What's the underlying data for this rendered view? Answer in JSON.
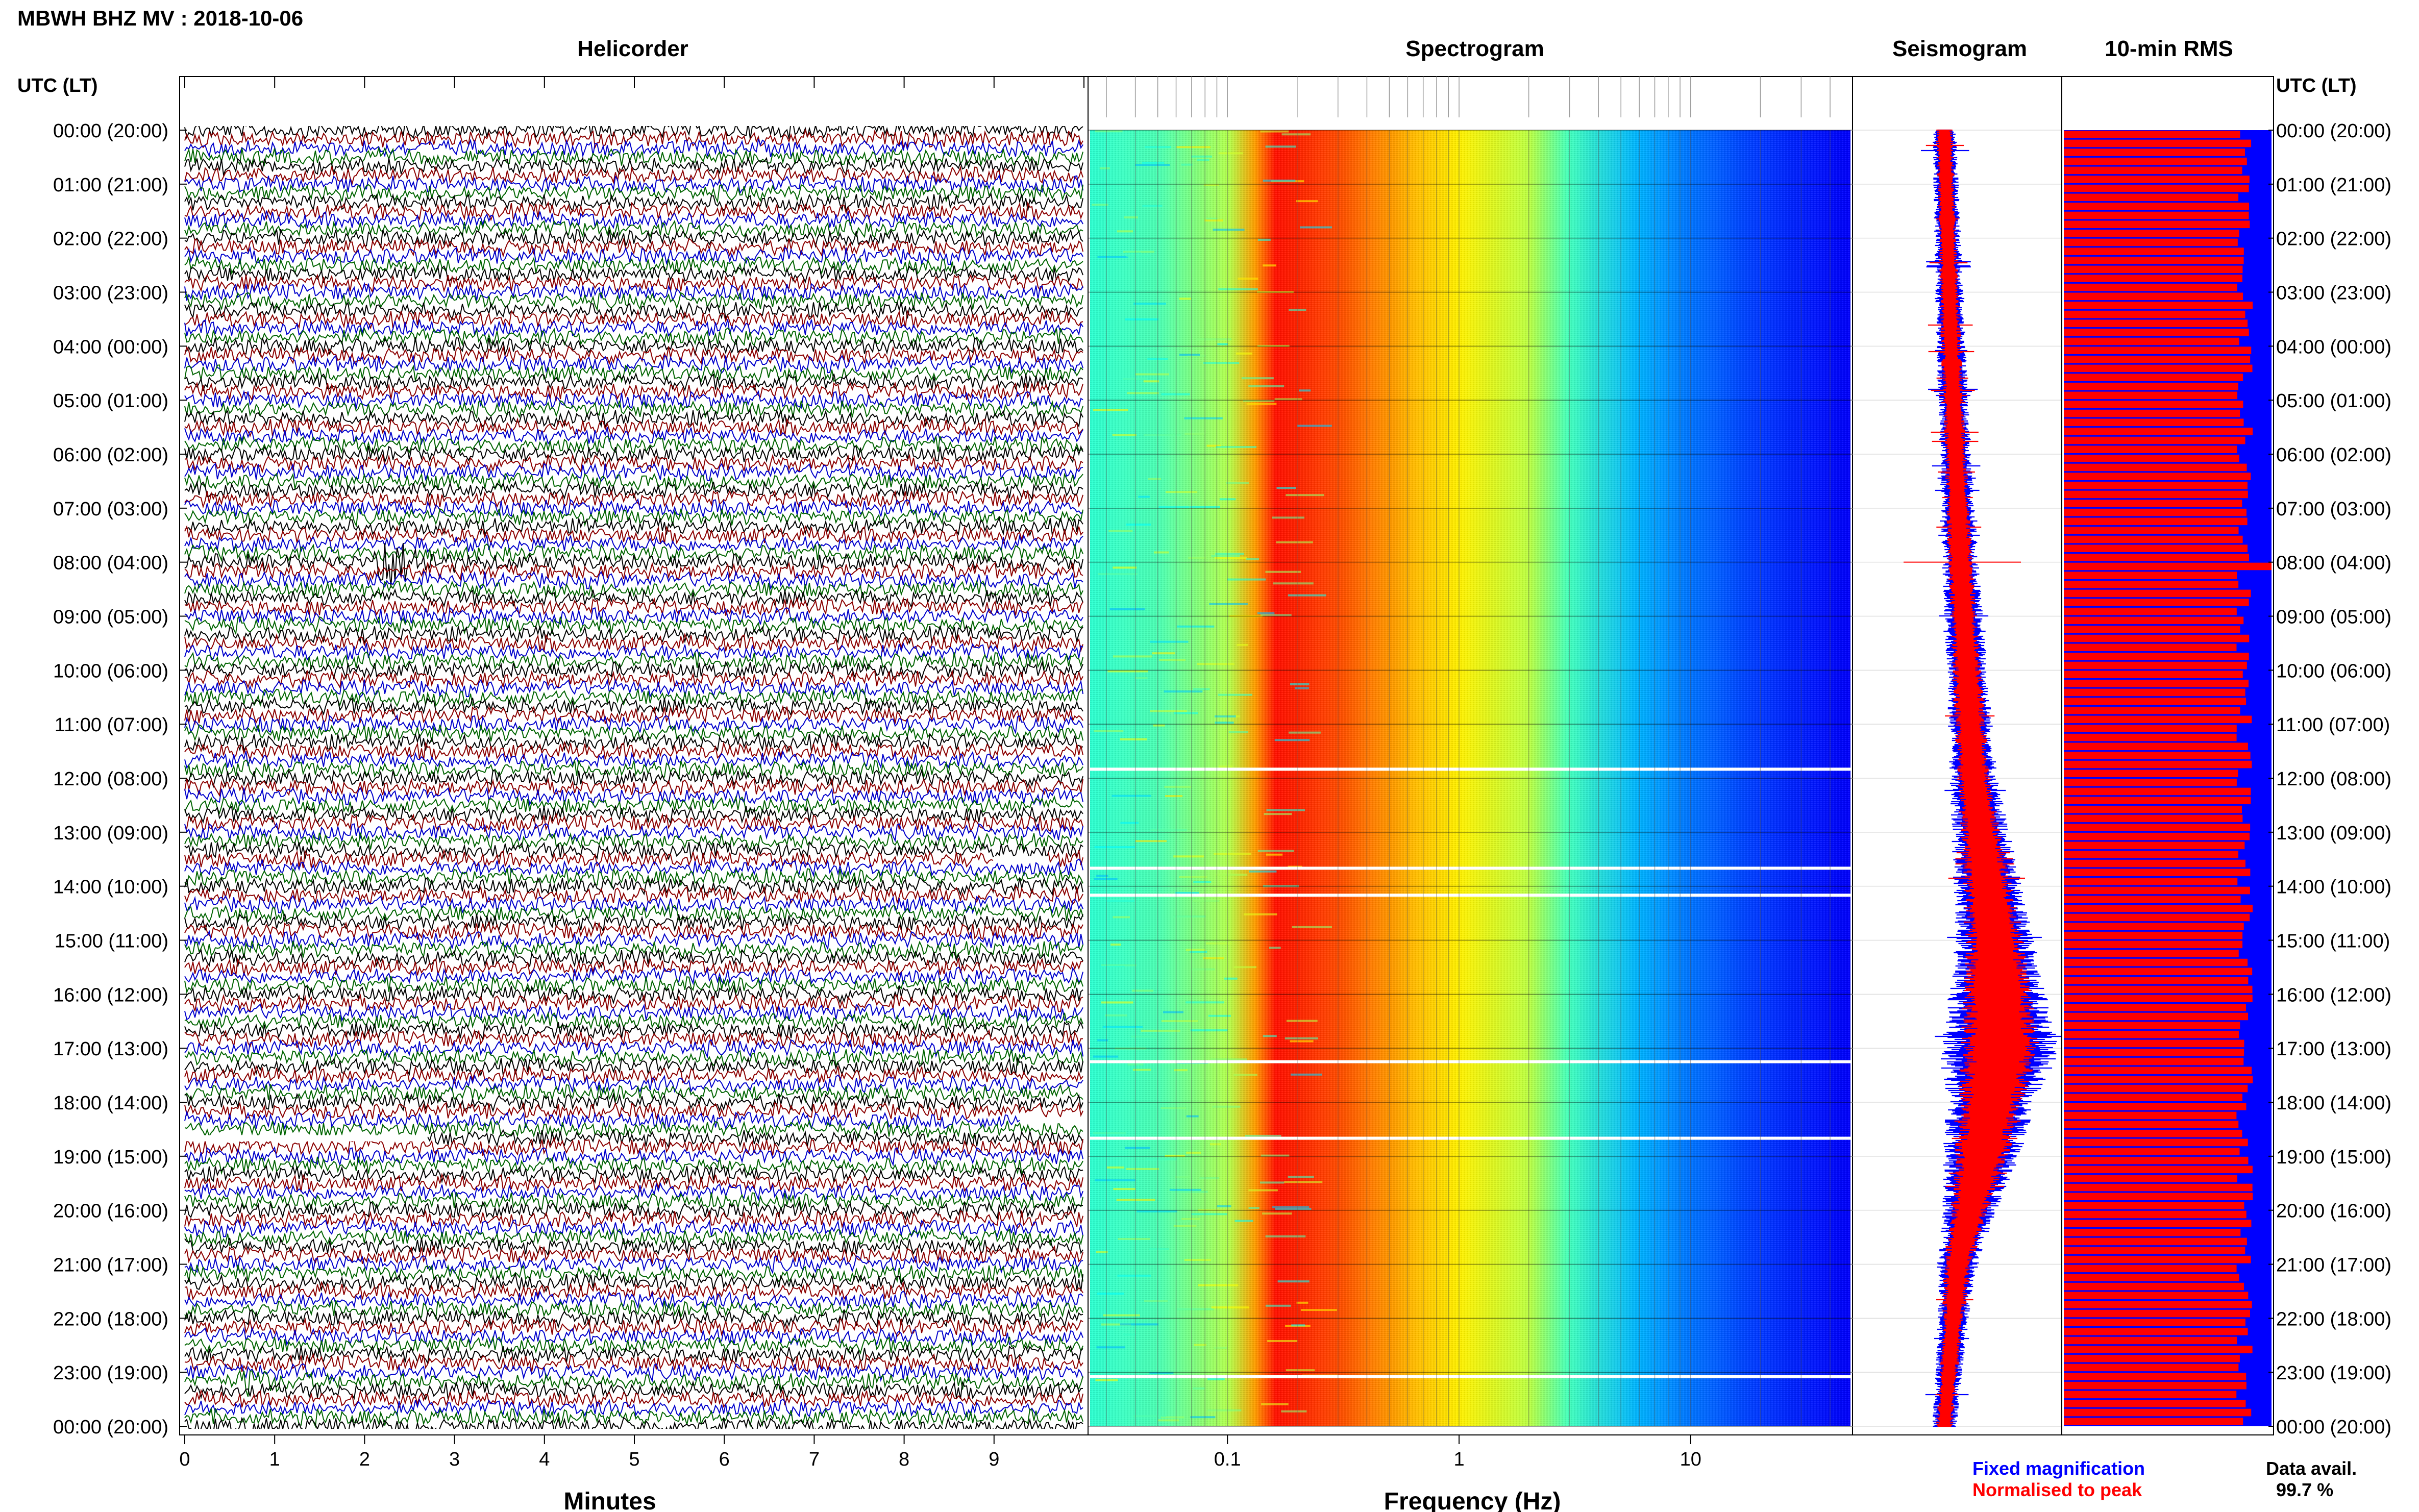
{
  "title": "MBWH BHZ MV : 2018-10-06",
  "panels": {
    "helicorder": "Helicorder",
    "spectrogram": "Spectrogram",
    "seismogram": "Seismogram",
    "rms": "10-min RMS"
  },
  "time_axis_label": "UTC (LT)",
  "time_ticks": [
    "00:00 (20:00)",
    "01:00 (21:00)",
    "02:00 (22:00)",
    "03:00 (23:00)",
    "04:00 (00:00)",
    "05:00 (01:00)",
    "06:00 (02:00)",
    "07:00 (03:00)",
    "08:00 (04:00)",
    "09:00 (05:00)",
    "10:00 (06:00)",
    "11:00 (07:00)",
    "12:00 (08:00)",
    "13:00 (09:00)",
    "14:00 (10:00)",
    "15:00 (11:00)",
    "16:00 (12:00)",
    "17:00 (13:00)",
    "18:00 (14:00)",
    "19:00 (15:00)",
    "20:00 (16:00)",
    "21:00 (17:00)",
    "22:00 (18:00)",
    "23:00 (19:00)",
    "00:00 (20:00)"
  ],
  "legend": {
    "fixed": "Fixed magnification",
    "normalised": "Normalised to peak",
    "avail_label": "Data avail.",
    "avail_value": "99.7 %"
  },
  "colors": {
    "heli_traces": [
      "#000000",
      "#8b0000",
      "#0000cc",
      "#006400"
    ],
    "seis_fixed": "#0000ff",
    "seis_normalised": "#ff0000",
    "rms_bars": "#ff0000",
    "rms_background": "#0000ff",
    "legend_fixed": "#0000ff",
    "legend_normalised": "#ff0000"
  },
  "chart_data": [
    {
      "type": "line",
      "panel": "Helicorder",
      "xlabel": "Minutes",
      "xlim": [
        0,
        10
      ],
      "xticks": [
        "0",
        "1",
        "2",
        "3",
        "4",
        "5",
        "6",
        "7",
        "8",
        "9"
      ],
      "ylim": [
        "00:00 (20:00)",
        "00:00 (20:00)"
      ],
      "rows_per_hour": 6,
      "trace_colors_cycle": [
        "black",
        "darkred",
        "blue",
        "green"
      ],
      "events": [
        {
          "time": "08:00",
          "minute": 2.2,
          "kind": "earthquake"
        },
        {
          "time": "23:10",
          "minute": 0.7,
          "kind": "small event"
        }
      ],
      "gaps": [
        {
          "time": "18:40",
          "minute_start": 0.0,
          "minute_end": 2.7
        },
        {
          "time": "18:20",
          "minute_start": 9.3,
          "minute_end": 10.0
        },
        {
          "time": "13:30",
          "minute_start": 9.0,
          "minute_end": 9.6
        }
      ]
    },
    {
      "type": "heatmap",
      "panel": "Spectrogram",
      "xlabel": "Frequency (Hz)",
      "xscale": "log",
      "xlim": [
        0.025,
        50
      ],
      "xticks": [
        "0.1",
        "1",
        "10"
      ],
      "band_frequencies_hz": [
        0.025,
        0.05,
        0.1,
        0.13,
        0.16,
        0.3,
        0.6,
        1.0,
        2.0,
        3.0,
        6.0,
        10.0,
        20.0,
        50.0
      ],
      "band_power_relative": [
        0.42,
        0.45,
        0.55,
        0.72,
        0.86,
        0.8,
        0.7,
        0.64,
        0.56,
        0.44,
        0.3,
        0.24,
        0.18,
        0.12
      ],
      "colormap": "jet",
      "gap_rows": [
        "11:50",
        "13:40",
        "14:10",
        "17:15",
        "18:40",
        "23:05"
      ]
    },
    {
      "type": "line",
      "panel": "Seismogram",
      "series": [
        {
          "name": "Fixed magnification",
          "color": "#0000ff",
          "x_hours": [
            0,
            2,
            4,
            6,
            8,
            10,
            12,
            13,
            14,
            15,
            16,
            17,
            18,
            19,
            20,
            21,
            22,
            23,
            24
          ],
          "amplitude": [
            0.2,
            0.22,
            0.24,
            0.26,
            0.3,
            0.34,
            0.4,
            0.48,
            0.56,
            0.66,
            0.8,
            1.0,
            0.74,
            0.64,
            0.44,
            0.34,
            0.26,
            0.22,
            0.2
          ]
        },
        {
          "name": "Normalised to peak",
          "color": "#ff0000",
          "x_hours": [
            0,
            2,
            4,
            6,
            8,
            10,
            12,
            13,
            14,
            15,
            16,
            17,
            18,
            19,
            20,
            21,
            22,
            23,
            24
          ],
          "amplitude": [
            0.14,
            0.15,
            0.17,
            0.18,
            0.21,
            0.24,
            0.28,
            0.33,
            0.4,
            0.48,
            0.58,
            0.66,
            0.52,
            0.45,
            0.31,
            0.24,
            0.18,
            0.15,
            0.14
          ]
        }
      ],
      "center_drift_hours": [
        0,
        4,
        8,
        12,
        15,
        17,
        18,
        19,
        21,
        24
      ],
      "center_drift_value": [
        0.0,
        0.05,
        0.12,
        0.22,
        0.38,
        0.42,
        0.35,
        0.28,
        0.1,
        0.0
      ]
    },
    {
      "type": "bar",
      "panel": "10-min RMS",
      "orientation": "horizontal",
      "interval_minutes": 10,
      "bars_count": 144,
      "typical_relative_rms": 0.87,
      "spike": {
        "time": "08:00",
        "relative_rms": 1.0
      }
    }
  ]
}
